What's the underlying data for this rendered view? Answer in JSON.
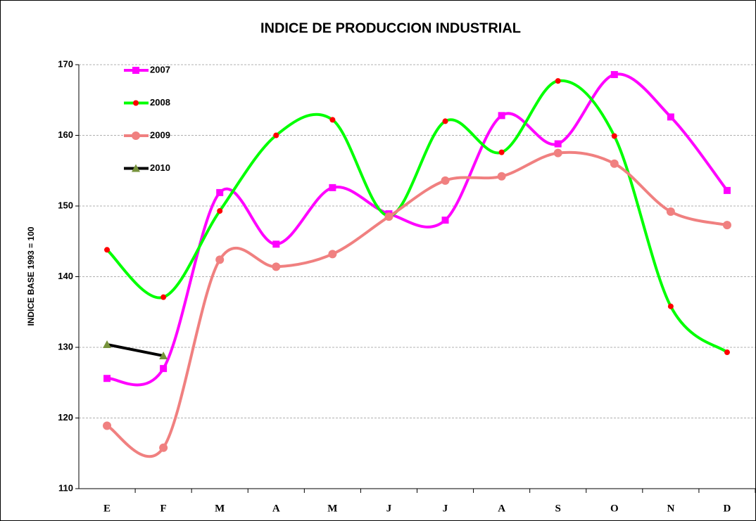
{
  "chart_data": {
    "type": "line",
    "title": "INDICE DE PRODUCCION INDUSTRIAL",
    "y_label": "INDICE BASE 1993 = 100",
    "categories": [
      "E",
      "F",
      "M",
      "A",
      "M",
      "J",
      "J",
      "A",
      "S",
      "O",
      "N",
      "D"
    ],
    "smooth": true,
    "grid": true,
    "legend": "top-left",
    "ylim": [
      110,
      170
    ],
    "yticks": [
      110,
      120,
      130,
      140,
      150,
      160,
      170
    ],
    "series": [
      {
        "name": "2007",
        "color": "#ff00ff",
        "marker": "square",
        "marker_color": "#ff00ff",
        "values": [
          125.6,
          127.0,
          151.9,
          144.6,
          152.6,
          148.9,
          148.0,
          162.8,
          158.8,
          168.6,
          162.6,
          152.2
        ]
      },
      {
        "name": "2008",
        "color": "#00ff00",
        "marker": "circle-small",
        "marker_color": "#ff0000",
        "values": [
          143.8,
          137.1,
          149.3,
          160.0,
          162.2,
          148.6,
          162.0,
          157.6,
          167.7,
          159.9,
          135.8,
          129.3
        ]
      },
      {
        "name": "2009",
        "color": "#f08080",
        "marker": "circle",
        "marker_color": "#f08080",
        "values": [
          118.9,
          115.8,
          142.4,
          141.4,
          143.2,
          148.5,
          153.6,
          154.2,
          157.5,
          156.0,
          149.2,
          147.3
        ]
      },
      {
        "name": "2010",
        "color": "#000000",
        "marker": "triangle",
        "marker_color": "#77933c",
        "values": [
          130.4,
          128.8,
          null,
          null,
          null,
          null,
          null,
          null,
          null,
          null,
          null,
          null
        ]
      }
    ]
  }
}
